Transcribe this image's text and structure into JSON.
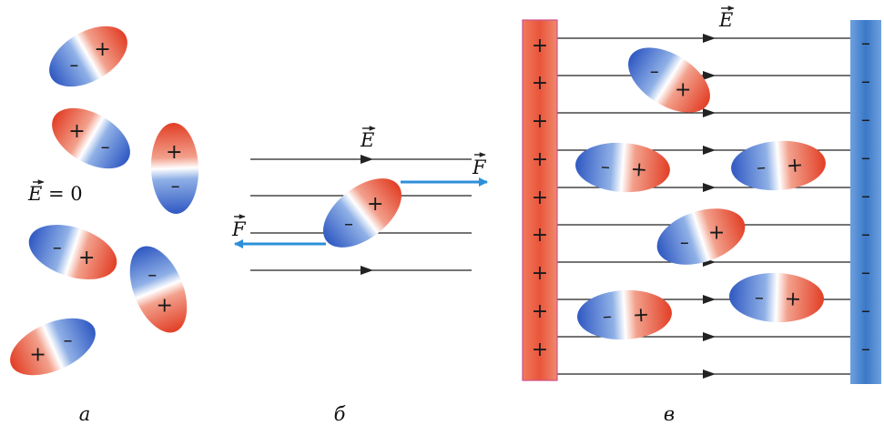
{
  "panels": {
    "a": {
      "caption": "а",
      "field_label": "E = 0",
      "field_letter": "E",
      "field_value": "= 0"
    },
    "b": {
      "caption": "б",
      "field_letter": "E",
      "force_letter": "F"
    },
    "c": {
      "caption": "в",
      "field_letter": "E"
    }
  },
  "symbols": {
    "plus": "+",
    "minus": "–"
  },
  "colors": {
    "positive": "#e0462e",
    "negative": "#2f5fc8",
    "force_arrow": "#2d8fd8",
    "field_line": "#222222",
    "plate_positive": "#e8553a",
    "plate_negative": "#3a78c8"
  },
  "icons": [
    "dipole-ellipse",
    "field-arrow",
    "force-arrow",
    "vector-arrow"
  ]
}
